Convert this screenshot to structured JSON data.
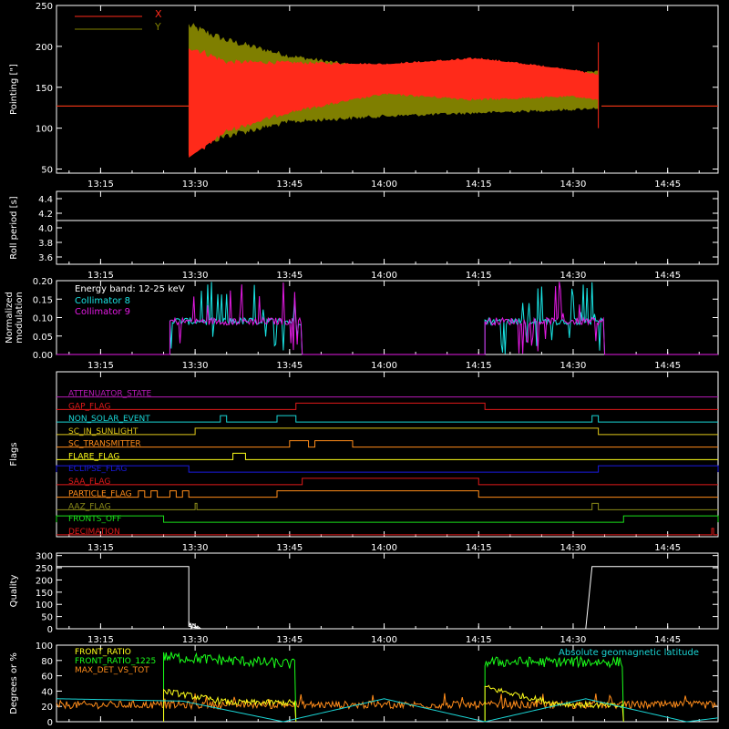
{
  "time_axis": {
    "range": [
      "13:08",
      "14:53"
    ],
    "ticks": [
      "13:15",
      "13:30",
      "13:45",
      "14:00",
      "14:15",
      "14:30",
      "14:45"
    ]
  },
  "chart_data": [
    {
      "type": "line",
      "panel": "pointing",
      "ylabel": "Pointing [\"]",
      "ylim": [
        45,
        250
      ],
      "yticks": [
        50,
        100,
        150,
        200,
        250
      ],
      "legend": "top-left",
      "series": [
        {
          "name": "X",
          "color": "#ff2a1a",
          "description_points": [
            [
              "13:08",
              127
            ],
            [
              "13:28",
              127
            ],
            [
              "13:29",
              132
            ],
            [
              "13:45",
              150
            ],
            [
              "14:00",
              160
            ],
            [
              "14:15",
              160
            ],
            [
              "14:30",
              155
            ],
            [
              "14:34",
              150
            ],
            [
              "14:35",
              127
            ],
            [
              "14:53",
              127
            ]
          ],
          "amplitude_points": [
            [
              "13:29",
              68
            ],
            [
              "13:35",
              42
            ],
            [
              "13:45",
              30
            ],
            [
              "14:00",
              18
            ],
            [
              "14:15",
              25
            ],
            [
              "14:30",
              16
            ],
            [
              "14:34",
              15
            ]
          ]
        },
        {
          "name": "Y",
          "color": "#7f7f00",
          "description_points": [
            [
              "13:08",
              127
            ],
            [
              "13:28",
              127
            ],
            [
              "13:29",
              150
            ],
            [
              "13:45",
              148
            ],
            [
              "14:00",
              143
            ],
            [
              "14:15",
              142
            ],
            [
              "14:30",
              145
            ],
            [
              "14:34",
              147
            ],
            [
              "14:35",
              127
            ],
            [
              "14:53",
              127
            ]
          ],
          "amplitude_points": [
            [
              "13:29",
              75
            ],
            [
              "13:35",
              58
            ],
            [
              "13:45",
              40
            ],
            [
              "14:00",
              28
            ],
            [
              "14:15",
              23
            ],
            [
              "14:30",
              22
            ],
            [
              "14:34",
              22
            ]
          ]
        }
      ]
    },
    {
      "type": "line",
      "panel": "roll",
      "ylabel": "Roll period [s]",
      "ylim": [
        3.5,
        4.5
      ],
      "yticks": [
        "3.6",
        "3.8",
        "4.0",
        "4.2",
        "4.4"
      ],
      "series": [
        {
          "color": "#ffffff",
          "points": [
            [
              "13:08",
              4.1
            ],
            [
              "14:53",
              4.1
            ]
          ]
        }
      ]
    },
    {
      "type": "line",
      "panel": "modulation",
      "ylabel": [
        "Normalized",
        "modulation"
      ],
      "ylim": [
        0,
        0.2
      ],
      "yticks": [
        "0.00",
        "0.05",
        "0.10",
        "0.15",
        "0.20"
      ],
      "annotation": "Energy band:  12-25 keV",
      "series": [
        {
          "name": "Collimator 8",
          "color": "#19e5e5",
          "active": [
            [
              "13:26",
              "13:47"
            ],
            [
              "14:16",
              "14:35"
            ]
          ],
          "base": 0.09
        },
        {
          "name": "Collimator 9",
          "color": "#e51ae5",
          "active": [
            [
              "13:26",
              "13:47"
            ],
            [
              "14:16",
              "14:35"
            ]
          ],
          "base": 0.09
        }
      ]
    },
    {
      "type": "line",
      "panel": "flags",
      "ylabel": "Flags",
      "flags": [
        {
          "name": "ATTENUATOR_STATE",
          "color": "#b81ab8",
          "high": []
        },
        {
          "name": "GAP_FLAG",
          "color": "#e01a1a",
          "high": [
            [
              "13:46",
              "14:16"
            ]
          ]
        },
        {
          "name": "NON_SOLAR_EVENT",
          "color": "#19d5d5",
          "high": [
            [
              "13:34",
              "13:35"
            ],
            [
              "13:43",
              "13:46"
            ],
            [
              "14:33",
              "14:34"
            ]
          ]
        },
        {
          "name": "SC_IN_SUNLIGHT",
          "color": "#e0c81a",
          "high": [
            [
              "13:30",
              "14:34"
            ]
          ]
        },
        {
          "name": "SC_TRANSMITTER",
          "color": "#ff8c1a",
          "high": [
            [
              "13:45",
              "13:48"
            ],
            [
              "13:49",
              "13:55"
            ]
          ]
        },
        {
          "name": "FLARE_FLAG",
          "color": "#ffff1a",
          "high": [
            [
              "13:36",
              "13:38"
            ]
          ]
        },
        {
          "name": "ECLIPSE_FLAG",
          "color": "#1a1ae0",
          "high": [
            [
              "13:08",
              "13:29"
            ],
            [
              "14:34",
              "14:53"
            ]
          ]
        },
        {
          "name": "SAA_FLAG",
          "color": "#e01a1a",
          "high": [
            [
              "13:47",
              "14:15"
            ]
          ]
        },
        {
          "name": "PARTICLE_FLAG",
          "color": "#ff8c1a",
          "high": [
            [
              "13:21",
              "13:22"
            ],
            [
              "13:23",
              "13:24"
            ],
            [
              "13:26",
              "13:27"
            ],
            [
              "13:28",
              "13:29"
            ],
            [
              "13:43",
              "14:15"
            ]
          ]
        },
        {
          "name": "AAZ_FLAG",
          "color": "#8c8c1a",
          "high": [
            [
              "13:30",
              "13:30"
            ],
            [
              "14:33",
              "14:34"
            ]
          ]
        },
        {
          "name": "FRONTS_OFF",
          "color": "#1ae01a",
          "high": [
            [
              "13:08",
              "13:25"
            ],
            [
              "14:38",
              "14:53"
            ]
          ]
        },
        {
          "name": "DECIMATION",
          "color": "#e01a1a",
          "high": [
            [
              "14:52",
              "14:52"
            ]
          ]
        }
      ]
    },
    {
      "type": "line",
      "panel": "quality",
      "ylabel": "Quality",
      "ylim": [
        0,
        310
      ],
      "yticks": [
        0,
        50,
        100,
        150,
        200,
        250,
        300
      ],
      "series": [
        {
          "color": "#ffffff",
          "points": [
            [
              "13:08",
              255
            ],
            [
              "13:29",
              255
            ],
            [
              "13:29",
              10
            ],
            [
              "13:31",
              0
            ],
            [
              "14:32",
              0
            ],
            [
              "14:33",
              255
            ],
            [
              "14:53",
              255
            ]
          ]
        }
      ]
    },
    {
      "type": "line",
      "panel": "ratio",
      "ylabel": "Degrees or %",
      "ylim": [
        0,
        100
      ],
      "yticks": [
        0,
        20,
        40,
        60,
        80,
        100
      ],
      "legend": "top-left",
      "series": [
        {
          "name": "FRONT_RATIO",
          "color": "#ffff1a",
          "segments": [
            [
              "13:25",
              "13:46",
              [
                40,
                25,
                25
              ]
            ],
            [
              "14:16",
              "14:38",
              [
                45,
                24,
                20
              ]
            ]
          ]
        },
        {
          "name": "FRONT_RATIO_1225",
          "color": "#1aff1a",
          "segments": [
            [
              "13:25",
              "13:46",
              [
                85,
                80,
                75
              ]
            ],
            [
              "14:16",
              "14:38",
              [
                78,
                78,
                78
              ]
            ]
          ]
        },
        {
          "name": "MAX_DET_VS_TOT",
          "color": "#ff8c1a",
          "segments": [
            [
              "13:08",
              "14:53",
              [
                25,
                25,
                25
              ]
            ]
          ]
        },
        {
          "name": "Absolute geomagnetic latitude",
          "color": "#1ad5d5",
          "points": [
            [
              "13:08",
              30
            ],
            [
              "13:28",
              27
            ],
            [
              "13:44",
              0
            ],
            [
              "14:00",
              30
            ],
            [
              "14:16",
              0
            ],
            [
              "14:32",
              30
            ],
            [
              "14:48",
              0
            ],
            [
              "14:53",
              5
            ]
          ]
        }
      ]
    }
  ]
}
